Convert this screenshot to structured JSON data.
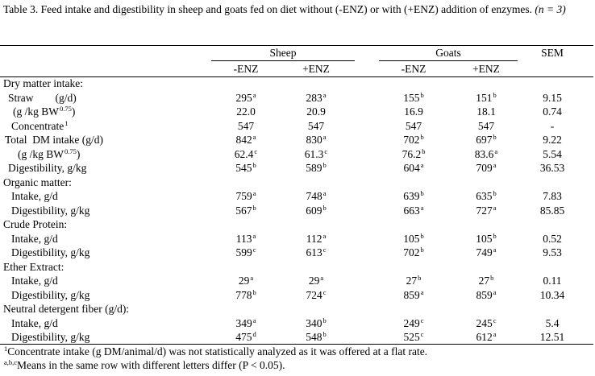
{
  "caption": {
    "text": "Table 3. Feed intake and digestibility in sheep and goats fed on diet without (-ENZ) or with (+ENZ) addition of enzymes.",
    "n_note": "(n = 3)"
  },
  "header": {
    "group_sheep": "Sheep",
    "group_goats": "Goats",
    "sem": "SEM",
    "sheep_minus": "-ENZ",
    "sheep_plus": "+ENZ",
    "goats_minus": "-ENZ",
    "goats_plus": "+ENZ"
  },
  "rows": [
    {
      "label": "Dry matter intake:",
      "indent": 4,
      "type": "section"
    },
    {
      "label": "Straw        (g/d)",
      "indent": 10,
      "v": [
        "295",
        "283",
        "155",
        "151"
      ],
      "s": [
        "a",
        "a",
        "b",
        "b"
      ],
      "sem": "9.15"
    },
    {
      "label": "(g /kg BW",
      "label_sup": "0.75",
      "label_end": ")",
      "indent": 16,
      "v": [
        "22.0",
        "20.9",
        "16.9",
        "18.1"
      ],
      "s": [
        "",
        "",
        "",
        ""
      ],
      "sem": "0.74"
    },
    {
      "label": "Concentrate",
      "label_sup": "1",
      "label_end": "",
      "indent": 14,
      "v": [
        "547",
        "547",
        "547",
        "547"
      ],
      "s": [
        "",
        "",
        "",
        ""
      ],
      "sem": "-"
    },
    {
      "label": "Total  DM intake (g/d)",
      "indent": 6,
      "v": [
        "842",
        "830",
        "702",
        "697"
      ],
      "s": [
        "a",
        "a",
        "b",
        "b"
      ],
      "sem": "9.22"
    },
    {
      "label": "(g /kg BW",
      "label_sup": "0.75",
      "label_end": ")",
      "indent": 22,
      "v": [
        "62.4",
        "61.3",
        "76.2",
        "83.6"
      ],
      "s": [
        "c",
        "c",
        "b",
        "a"
      ],
      "sem": "5.54"
    },
    {
      "label": "Digestibility, g/kg",
      "indent": 10,
      "v": [
        "545",
        "589",
        "604",
        "709"
      ],
      "s": [
        "b",
        "b",
        "a",
        "a"
      ],
      "sem": "36.53"
    },
    {
      "label": "Organic matter:",
      "indent": 4,
      "type": "section"
    },
    {
      "label": "Intake, g/d",
      "indent": 14,
      "v": [
        "759",
        "748",
        "639",
        "635"
      ],
      "s": [
        "a",
        "a",
        "b",
        "b"
      ],
      "sem": "7.83"
    },
    {
      "label": "Digestibility, g/kg",
      "indent": 14,
      "v": [
        "567",
        "609",
        "663",
        "727"
      ],
      "s": [
        "b",
        "b",
        "a",
        "a"
      ],
      "sem": "85.85"
    },
    {
      "label": "Crude Protein:",
      "indent": 4,
      "type": "section"
    },
    {
      "label": "Intake, g/d",
      "indent": 14,
      "v": [
        "113",
        "112",
        "105",
        "105"
      ],
      "s": [
        "a",
        "a",
        "b",
        "b"
      ],
      "sem": "0.52"
    },
    {
      "label": "Digestibility, g/kg",
      "indent": 14,
      "v": [
        "599",
        "613",
        "702",
        "749"
      ],
      "s": [
        "c",
        "c",
        "b",
        "a"
      ],
      "sem": "9.53"
    },
    {
      "label": "Ether Extract:",
      "indent": 4,
      "type": "section"
    },
    {
      "label": "Intake, g/d",
      "indent": 14,
      "v": [
        "29",
        "29",
        "27",
        "27"
      ],
      "s": [
        "a",
        "a",
        "b",
        "b"
      ],
      "sem": "0.11"
    },
    {
      "label": "Digestibility, g/kg",
      "indent": 14,
      "v": [
        "778",
        "724",
        "859",
        "859"
      ],
      "s": [
        "b",
        "c",
        "a",
        "a"
      ],
      "sem": "10.34"
    },
    {
      "label": "Neutral detergent fiber (g/d):",
      "indent": 4,
      "type": "section"
    },
    {
      "label": "Intake, g/d",
      "indent": 14,
      "v": [
        "349",
        "340",
        "249",
        "245"
      ],
      "s": [
        "a",
        "b",
        "c",
        "c"
      ],
      "sem": "5.4"
    },
    {
      "label": "Digestibility, g/kg",
      "indent": 14,
      "v": [
        "475",
        "548",
        "525",
        "612"
      ],
      "s": [
        "d",
        "b",
        "c",
        "a"
      ],
      "sem": "12.51"
    }
  ],
  "footnotes": [
    {
      "sup": "1",
      "text": "Concentrate intake (g DM/animal/d) was not statistically analyzed as it was offered at a flat rate."
    },
    {
      "sup": "a,b,c",
      "text": "Means in the same row with different letters differ (P < 0.05)."
    }
  ]
}
